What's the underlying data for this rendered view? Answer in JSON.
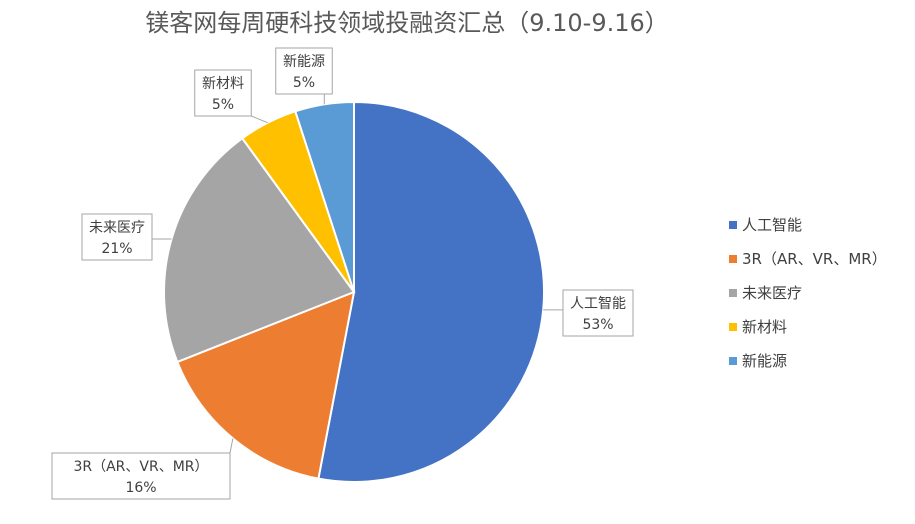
{
  "chart_data": {
    "type": "pie",
    "title": "镁客网每周硬科技领域投融资汇总（9.10-9.16）",
    "slices": [
      {
        "name": "人工智能",
        "value": 53,
        "label": "53%",
        "color": "#4472C4"
      },
      {
        "name": "3R（AR、VR、MR）",
        "value": 16,
        "label": "16%",
        "color": "#ED7D31"
      },
      {
        "name": "未来医疗",
        "value": 21,
        "label": "21%",
        "color": "#A5A5A5"
      },
      {
        "name": "新材料",
        "value": 5,
        "label": "5%",
        "color": "#FFC000"
      },
      {
        "name": "新能源",
        "value": 5,
        "label": "5%",
        "color": "#5B9BD5"
      }
    ],
    "legend_position": "right"
  }
}
